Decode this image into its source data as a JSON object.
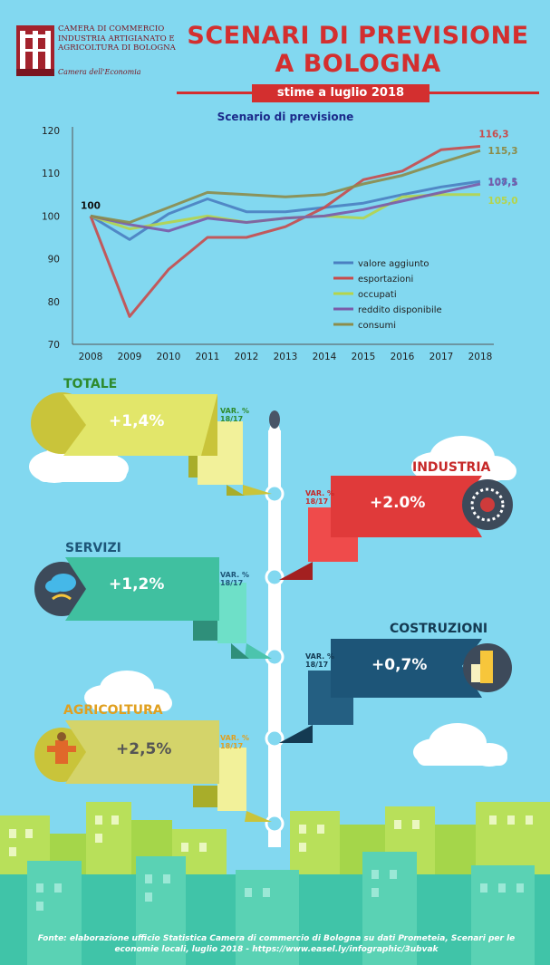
{
  "header": {
    "org_lines": [
      "CAMERA DI COMMERCIO",
      "INDUSTRIA ARTIGIANATO E",
      "AGRICOLTURA DI BOLOGNA"
    ],
    "org_sub": "Camera dell'Economia",
    "title_line1": "SCENARI DI PREVISIONE",
    "title_line2": "A BOLOGNA",
    "date_banner": "stime a luglio 2018"
  },
  "chart_data": {
    "type": "line",
    "title": "Scenario di previsione",
    "x": [
      2008,
      2009,
      2010,
      2011,
      2012,
      2013,
      2014,
      2015,
      2016,
      2017,
      2018
    ],
    "ylim": [
      70,
      120
    ],
    "yticks": [
      70,
      80,
      90,
      100,
      110,
      120
    ],
    "base_label": "100",
    "legend_position": "bottom-right",
    "series": [
      {
        "name": "valore aggiunto",
        "color": "#4a7fc1",
        "values": [
          100,
          94.5,
          100.5,
          104.0,
          101.0,
          101.0,
          102.0,
          103.0,
          105.0,
          106.8,
          108.1
        ],
        "end_label": "108,1"
      },
      {
        "name": "esportazioni",
        "color": "#c84b4b",
        "values": [
          100,
          76.5,
          87.5,
          95.0,
          95.0,
          97.5,
          102.0,
          108.5,
          110.5,
          115.5,
          116.3
        ],
        "end_label": "116,3"
      },
      {
        "name": "occupati",
        "color": "#b5d44a",
        "values": [
          100,
          97.0,
          98.5,
          100.0,
          98.5,
          99.5,
          100.0,
          99.5,
          104.5,
          105.0,
          105.0
        ],
        "end_label": "105,0"
      },
      {
        "name": "reddito disponibile",
        "color": "#7b5aa8",
        "values": [
          100,
          98.0,
          96.5,
          99.5,
          98.5,
          99.5,
          100.0,
          101.5,
          103.5,
          105.5,
          107.5
        ],
        "end_label": "107,5"
      },
      {
        "name": "consumi",
        "color": "#8c8c4a",
        "values": [
          100,
          98.5,
          102.0,
          105.5,
          105.0,
          104.5,
          105.0,
          107.5,
          109.5,
          112.5,
          115.3
        ],
        "end_label": "115,3"
      }
    ]
  },
  "sectors": {
    "var_label_1": "VAR. %",
    "var_label_2": "18/17",
    "totale": {
      "name": "TOTALE",
      "value": "+1,4%"
    },
    "industria": {
      "name": "INDUSTRIA",
      "value": "+2.0%"
    },
    "servizi": {
      "name": "SERVIZI",
      "value": "+1,2%"
    },
    "costruzioni": {
      "name": "COSTRUZIONI",
      "value": "+0,7%"
    },
    "agricoltura": {
      "name": "AGRICOLTURA",
      "value": "+2,5%"
    }
  },
  "footer": {
    "source_line1": "Fonte: elaborazione ufficio Statistica Camera di commercio di Bologna su dati Prometeia, Scenari per le",
    "source_line2": "economie locali, luglio 2018 - https://www.easel.ly/infographic/3ubvak"
  }
}
